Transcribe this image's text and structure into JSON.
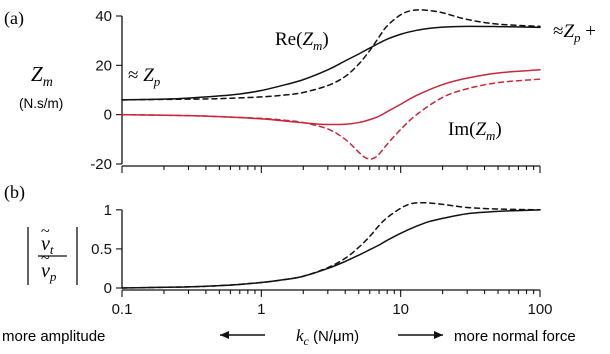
{
  "colors": {
    "re": "#111111",
    "im": "#c8283c"
  },
  "chart_data": [
    {
      "panel_label": "(a)",
      "type": "line",
      "ylabel": "Z_m",
      "ylabel_unit": "(N.s/m)",
      "xscale": "log",
      "xlim": [
        0.1,
        100
      ],
      "ylim": [
        -20,
        40
      ],
      "yticks": [
        -20,
        0,
        20,
        40
      ],
      "ytick_labels": [
        "-20",
        "0",
        "20",
        "40"
      ],
      "annotations": [
        {
          "name": "re-label",
          "prefix": "Re(",
          "var": "Z",
          "sub": "m",
          "suffix": ")"
        },
        {
          "name": "im-label",
          "prefix": "Im(",
          "var": "Z",
          "sub": "m",
          "suffix": ")"
        },
        {
          "name": "approx-zp-label",
          "prefix": "≈ ",
          "var": "Z",
          "sub": "p",
          "suffix": ""
        },
        {
          "name": "approx-zp-plus-label",
          "prefix": "≈",
          "var": "Z",
          "sub": "p",
          "suffix": " +"
        }
      ],
      "series": [
        {
          "id": "re-solid",
          "color": "re",
          "dash": false,
          "x": [
            0.1,
            0.2,
            0.3,
            0.5,
            0.7,
            1,
            1.5,
            2,
            3,
            4,
            5,
            6,
            7,
            8,
            10,
            13,
            16,
            20,
            30,
            50,
            100
          ],
          "y": [
            6,
            6.3,
            6.7,
            7.6,
            8.4,
            9.8,
            12.2,
            14.2,
            18.2,
            21.8,
            24.6,
            27,
            29,
            30.6,
            32.6,
            34.2,
            35,
            35.5,
            35.8,
            35.7,
            35.4
          ]
        },
        {
          "id": "re-dashed",
          "color": "re",
          "dash": true,
          "x": [
            0.1,
            0.3,
            0.5,
            1,
            1.5,
            2,
            3,
            4,
            5,
            6,
            7,
            8,
            10,
            12,
            15,
            20,
            30,
            50,
            100
          ],
          "y": [
            6,
            6.3,
            6.5,
            7.2,
            8,
            9,
            11.8,
            15.5,
            20.5,
            26,
            31.5,
            36,
            40.5,
            42.2,
            42.4,
            41.3,
            38.6,
            36.7,
            35.8
          ]
        },
        {
          "id": "im-solid",
          "color": "im",
          "dash": false,
          "x": [
            0.1,
            0.3,
            0.5,
            1,
            1.5,
            2,
            2.5,
            3,
            4,
            5,
            6,
            7,
            8,
            10,
            13,
            20,
            30,
            50,
            100
          ],
          "y": [
            0,
            -0.4,
            -0.8,
            -1.7,
            -2.6,
            -3.3,
            -3.8,
            -4,
            -3.9,
            -3.2,
            -2,
            -0.6,
            1.2,
            4.2,
            7.8,
            12.2,
            14.8,
            16.9,
            18.2
          ]
        },
        {
          "id": "im-dashed",
          "color": "im",
          "dash": true,
          "x": [
            0.1,
            0.3,
            0.5,
            1,
            1.5,
            2,
            3,
            4,
            5,
            5.5,
            6,
            6.5,
            7,
            8,
            10,
            13,
            20,
            30,
            50,
            100
          ],
          "y": [
            0,
            -0.4,
            -0.8,
            -1.5,
            -2.3,
            -3.2,
            -5.8,
            -10,
            -15.2,
            -17.2,
            -18,
            -17.5,
            -16,
            -12,
            -6,
            0,
            7,
            10.5,
            13,
            14.4
          ]
        }
      ]
    },
    {
      "panel_label": "(b)",
      "type": "line",
      "ylabel": "|ṽ_t / ṽ_p|",
      "xscale": "log",
      "xlim": [
        0.1,
        100
      ],
      "ylim": [
        0,
        1.1
      ],
      "yticks": [
        0,
        0.5,
        1
      ],
      "ytick_labels": [
        "0",
        "0.5",
        "1"
      ],
      "xticks": [
        0.1,
        1,
        10,
        100
      ],
      "xtick_labels": [
        "0.1",
        "1",
        "10",
        "100"
      ],
      "xlabel": "k_c (N/μm)",
      "xlabel_left": "more amplitude",
      "xlabel_right": "more normal force",
      "series": [
        {
          "id": "vel-solid",
          "color": "re",
          "dash": false,
          "x": [
            0.1,
            0.2,
            0.3,
            0.5,
            0.7,
            1,
            1.5,
            2,
            3,
            4,
            5,
            6,
            7,
            8,
            10,
            13,
            16,
            20,
            30,
            50,
            100
          ],
          "y": [
            0,
            0.01,
            0.015,
            0.03,
            0.045,
            0.07,
            0.11,
            0.15,
            0.25,
            0.34,
            0.42,
            0.49,
            0.55,
            0.61,
            0.7,
            0.79,
            0.85,
            0.89,
            0.95,
            0.98,
            1.0
          ]
        },
        {
          "id": "vel-dashed",
          "color": "re",
          "dash": true,
          "x": [
            0.1,
            0.3,
            0.5,
            1,
            1.5,
            2,
            3,
            4,
            5,
            6,
            7,
            8,
            10,
            12,
            15,
            20,
            30,
            50,
            100
          ],
          "y": [
            0,
            0.015,
            0.03,
            0.07,
            0.11,
            0.15,
            0.26,
            0.38,
            0.52,
            0.66,
            0.8,
            0.9,
            1.02,
            1.08,
            1.09,
            1.07,
            1.03,
            1.01,
            1.0
          ]
        }
      ]
    }
  ]
}
